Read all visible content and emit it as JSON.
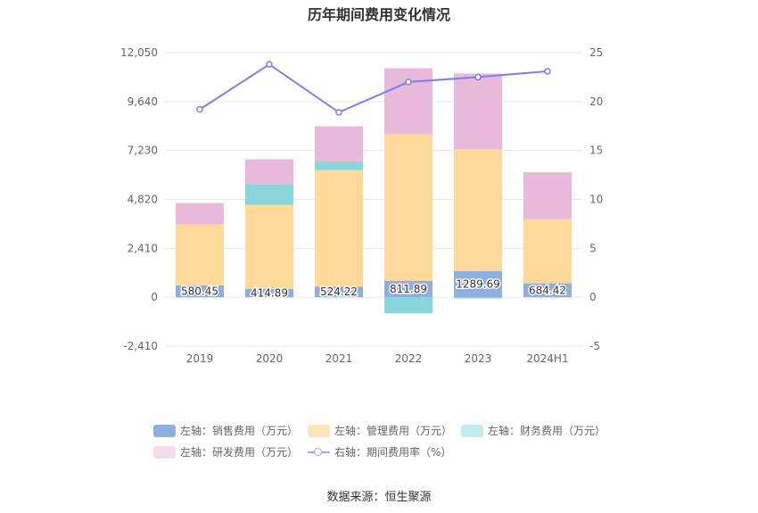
{
  "chart_data": {
    "type": "bar",
    "title": "历年期间费用变化情况",
    "categories": [
      "2019",
      "2020",
      "2021",
      "2022",
      "2023",
      "2024H1"
    ],
    "left_axis": {
      "ylim": [
        -2410,
        12050
      ],
      "ticks": [
        "12,050",
        "9,640",
        "7,230",
        "4,820",
        "2,410",
        "0",
        "-2,410"
      ]
    },
    "right_axis": {
      "ylim": [
        -5,
        25
      ],
      "ticks": [
        "25",
        "20",
        "15",
        "10",
        "5",
        "0",
        "-5"
      ]
    },
    "series": [
      {
        "name": "左轴：销售费用（万元）",
        "axis": "left",
        "kind": "bar",
        "color": "#8eaedb",
        "values": [
          580.45,
          414.89,
          524.22,
          811.89,
          1289.69,
          684.42
        ],
        "labels": [
          "580.45",
          "414.89",
          "524.22",
          "811.89",
          "1289.69",
          "684.42"
        ]
      },
      {
        "name": "左轴：管理费用（万元）",
        "axis": "left",
        "kind": "bar",
        "color": "#ffd99a",
        "values": [
          3010,
          4140,
          5740,
          7220,
          6000,
          3170
        ]
      },
      {
        "name": "左轴：财务费用（万元）",
        "axis": "left",
        "kind": "bar",
        "color": "#88d6db",
        "values": [
          0,
          1020,
          420,
          -790,
          -60,
          0
        ]
      },
      {
        "name": "左轴：研发费用（万元）",
        "axis": "left",
        "kind": "bar",
        "color": "#e8b9da",
        "values": [
          1050,
          1220,
          1740,
          3250,
          3730,
          2300
        ]
      },
      {
        "name": "右轴：期间费用率（%）",
        "axis": "right",
        "kind": "line",
        "color": "#7b7ff0",
        "values": [
          19.2,
          23.8,
          18.9,
          22.0,
          22.5,
          23.1
        ]
      }
    ],
    "legend_position": "bottom",
    "grid": true
  },
  "legend": [
    {
      "label": "左轴：销售费用（万元）",
      "color": "#8eaedb"
    },
    {
      "label": "左轴：管理费用（万元）",
      "color": "#ffe3b8"
    },
    {
      "label": "左轴：财务费用（万元）",
      "color": "#c2ecee"
    },
    {
      "label": "左轴：研发费用（万元）",
      "color": "#f3dcec"
    },
    {
      "label": "右轴：期间费用率（%）",
      "color": "#a0a6f5"
    }
  ],
  "footer": {
    "source": "数据来源：恒生聚源"
  }
}
